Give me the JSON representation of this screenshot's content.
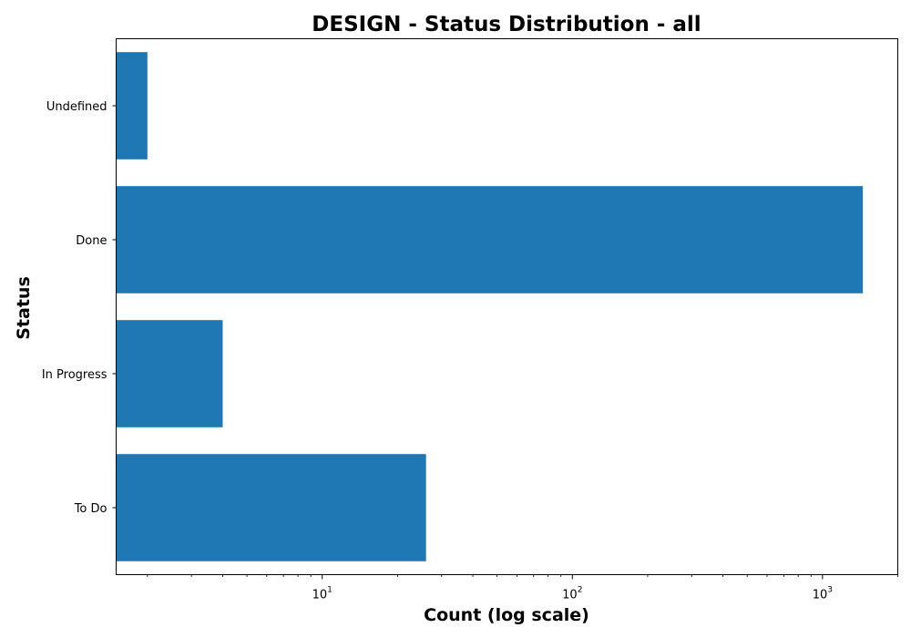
{
  "chart_data": {
    "type": "bar",
    "orientation": "horizontal",
    "title": "DESIGN - Status Distribution - all",
    "xlabel": "Count (log scale)",
    "ylabel": "Status",
    "xscale": "log",
    "xlim": [
      1.5,
      2000
    ],
    "xticks": [
      {
        "value": 10,
        "base": "10",
        "exp": "1"
      },
      {
        "value": 100,
        "base": "10",
        "exp": "2"
      },
      {
        "value": 1000,
        "base": "10",
        "exp": "3"
      }
    ],
    "categories": [
      "To Do",
      "In Progress",
      "Done",
      "Undefined"
    ],
    "values": [
      26,
      4,
      1450,
      2
    ],
    "bar_color": "#1f77b4",
    "grid": false,
    "legend": "none"
  }
}
